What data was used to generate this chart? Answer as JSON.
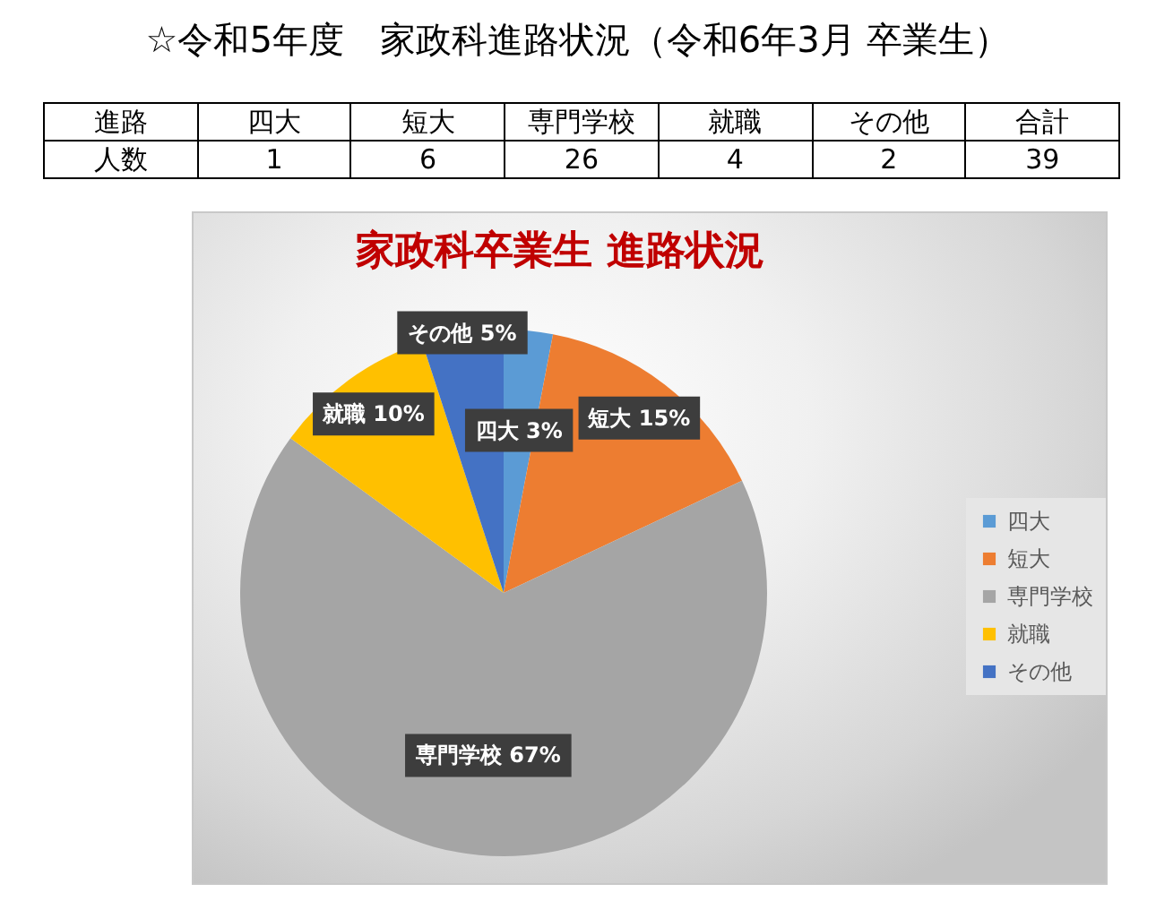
{
  "chart_data": [
    {
      "type": "other",
      "title": "☆令和5年度　家政科進路状況（令和6年3月 卒業生）",
      "xlabel": "進路",
      "ylabel": "人数",
      "categories": [
        "四大",
        "短大",
        "専門学校",
        "就職",
        "その他"
      ],
      "values": [
        1,
        6,
        26,
        4,
        2
      ],
      "data_labels": true,
      "annotations": [
        "合計"
      ],
      "totals": [
        "39"
      ]
    },
    {
      "type": "pie",
      "title": "家政科卒業生 進路状況",
      "categories": [
        "四大",
        "短大",
        "専門学校",
        "就職",
        "その他"
      ],
      "values": [
        3,
        15,
        67,
        10,
        5
      ],
      "colors": [
        "#5b9bd5",
        "#ed7d31",
        "#a5a5a5",
        "#ffc000",
        "#4472c4"
      ],
      "value_labels": [
        "3%",
        "15%",
        "67%",
        "10%",
        "5%"
      ],
      "legend": "right"
    }
  ]
}
